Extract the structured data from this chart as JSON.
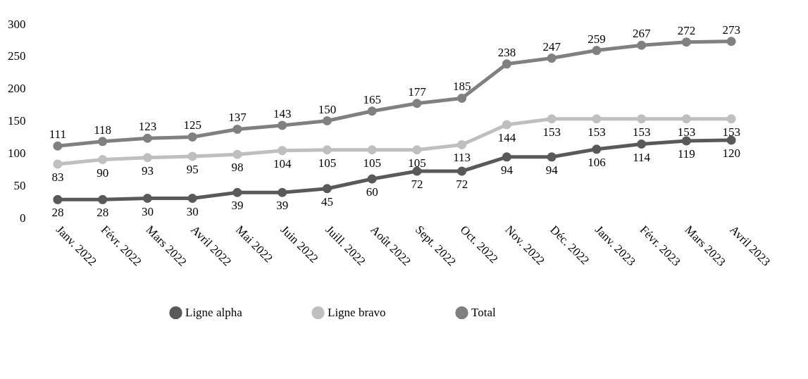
{
  "chart_data": {
    "type": "line",
    "categories": [
      "Janv. 2022",
      "Févr. 2022",
      "Mars 2022",
      "Avril 2022",
      "Mai 2022",
      "Juin 2022",
      "Juill. 2022",
      "Août 2022",
      "Sept. 2022",
      "Oct. 2022",
      "Nov. 2022",
      "Déc. 2022",
      "Janv. 2023",
      "Févr. 2023",
      "Mars 2023",
      "Avril 2023"
    ],
    "series": [
      {
        "name": "Ligne alpha",
        "color": "#595959",
        "values": [
          28,
          28,
          30,
          30,
          39,
          39,
          45,
          60,
          72,
          72,
          94,
          94,
          106,
          114,
          119,
          120
        ]
      },
      {
        "name": "Ligne bravo",
        "color": "#bfbfbf",
        "values": [
          83,
          90,
          93,
          95,
          98,
          104,
          105,
          105,
          105,
          113,
          144,
          153,
          153,
          153,
          153,
          153
        ]
      },
      {
        "name": "Total",
        "color": "#808080",
        "values": [
          111,
          118,
          123,
          125,
          137,
          143,
          150,
          165,
          177,
          185,
          238,
          247,
          259,
          267,
          272,
          273
        ]
      }
    ],
    "ylim": [
      0,
      300
    ],
    "yticks": [
      0,
      50,
      100,
      150,
      200,
      250,
      300
    ],
    "grid": false,
    "legend": "bottom",
    "marker": "circle",
    "line_style": "solid",
    "data_labels": true
  }
}
